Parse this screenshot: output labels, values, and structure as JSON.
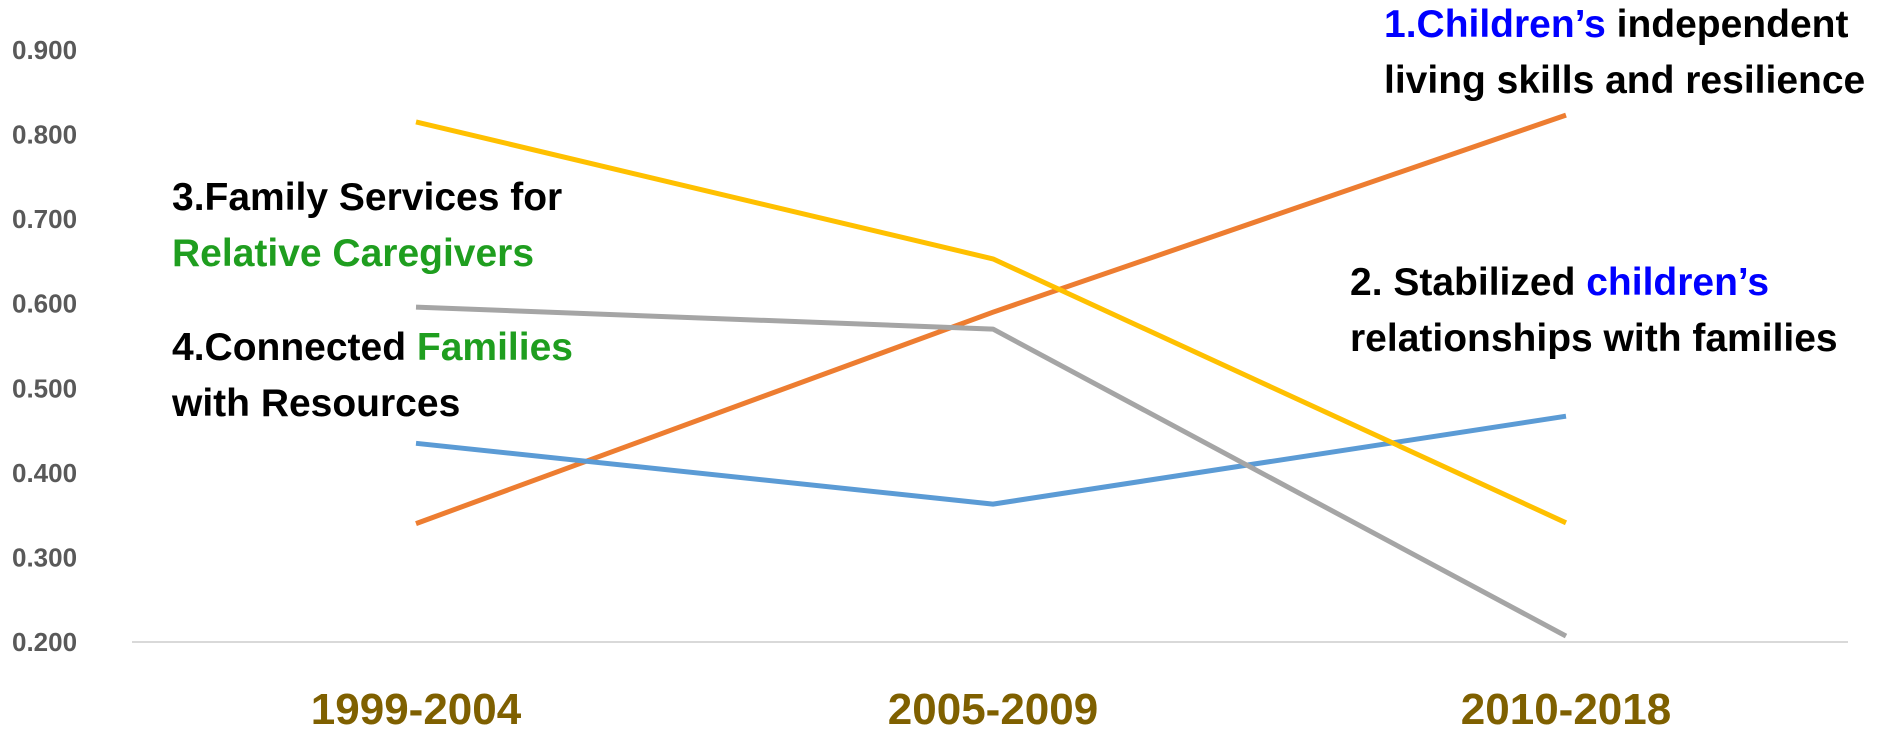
{
  "chart_data": {
    "type": "line",
    "categories": [
      "1999-2004",
      "2005-2009",
      "2010-2018"
    ],
    "y_ticks": [
      "0.900",
      "0.800",
      "0.700",
      "0.600",
      "0.500",
      "0.400",
      "0.300",
      "0.200"
    ],
    "ylim": [
      0.2,
      0.9
    ],
    "grid": false,
    "series": [
      {
        "name": "1.Children's independent living skills and resilience",
        "color": "#ed7d31",
        "values": [
          0.34,
          0.59,
          0.823
        ]
      },
      {
        "name": "2. Stabilized children's relationships with families",
        "color": "#5b9bd5",
        "values": [
          0.435,
          0.363,
          0.467
        ]
      },
      {
        "name": "3.Family Services for Relative Caregivers",
        "color": "#ffc000",
        "values": [
          0.815,
          0.653,
          0.341
        ]
      },
      {
        "name": "4.Connected Families with Resources",
        "color": "#a5a5a5",
        "values": [
          0.596,
          0.57,
          0.207
        ]
      }
    ]
  },
  "annotations": {
    "a1": {
      "line1_colored": "1.Children’s",
      "line1_rest": " independent",
      "line2": "living skills and resilience"
    },
    "a2": {
      "line1_plain": "2. Stabilized ",
      "line1_colored": "children’s",
      "line2": "relationships with families"
    },
    "a3": {
      "line1": "3.Family Services for",
      "line2_colored": "Relative Caregivers"
    },
    "a4": {
      "line1_plain": "4.Connected ",
      "line1_colored": "Families",
      "line2": "with Resources"
    }
  }
}
